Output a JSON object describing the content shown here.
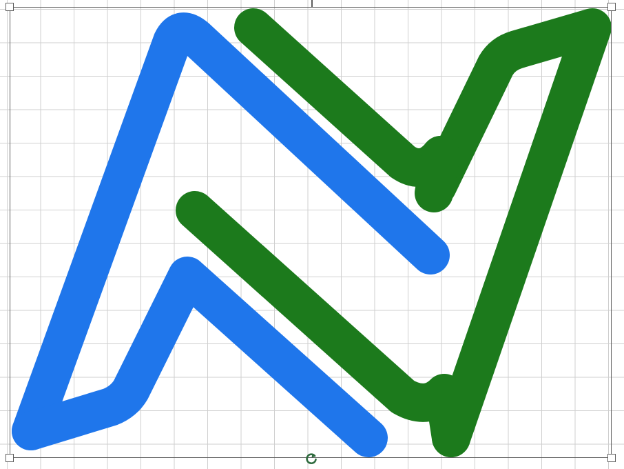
{
  "canvas": {
    "grid": "on",
    "grid_color": "#cfcfcf",
    "background": "#ffffff"
  },
  "artwork": {
    "blue_shape": {
      "color": "#1f76eb",
      "icon": "blue-zigzag-stroke"
    },
    "green_shape": {
      "color": "#1c7a1c",
      "icon": "green-zigzag-stroke"
    }
  },
  "selection": {
    "border_color": "#5c5c5c",
    "handles": [
      "top-left",
      "top-right",
      "bottom-left",
      "bottom-right"
    ],
    "rotate_icon": "rotate-icon",
    "rotate_color": "#2e6b3e"
  }
}
